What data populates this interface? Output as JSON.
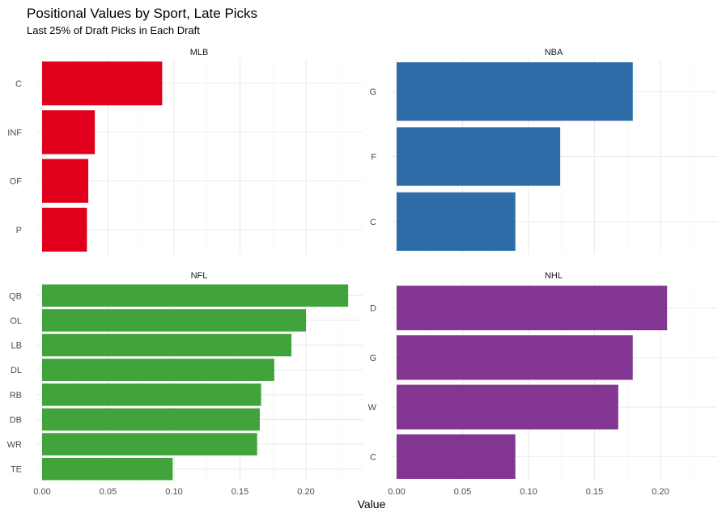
{
  "chart_data": {
    "type": "bar",
    "orientation": "horizontal",
    "title": "Positional Values by Sport, Late Picks",
    "subtitle": "Last 25% of Draft Picks in Each Draft",
    "xlabel": "Value",
    "ylabel": "",
    "xlim": [
      0,
      0.24
    ],
    "x_ticks": [
      "0.00",
      "0.05",
      "0.10",
      "0.15",
      "0.20"
    ],
    "grid": true,
    "legend": "none",
    "facets": [
      {
        "name": "MLB",
        "color": "#e0001b",
        "categories": [
          "C",
          "INF",
          "OF",
          "P"
        ],
        "values": [
          0.091,
          0.04,
          0.035,
          0.034
        ]
      },
      {
        "name": "NBA",
        "color": "#2d6ca8",
        "categories": [
          "G",
          "F",
          "C"
        ],
        "values": [
          0.179,
          0.124,
          0.09
        ]
      },
      {
        "name": "NFL",
        "color": "#41a33b",
        "categories": [
          "QB",
          "OL",
          "LB",
          "DL",
          "RB",
          "DB",
          "WR",
          "TE"
        ],
        "values": [
          0.232,
          0.2,
          0.189,
          0.176,
          0.166,
          0.165,
          0.163,
          0.099
        ]
      },
      {
        "name": "NHL",
        "color": "#833691",
        "categories": [
          "D",
          "G",
          "W",
          "C"
        ],
        "values": [
          0.205,
          0.179,
          0.168,
          0.09
        ]
      }
    ]
  }
}
